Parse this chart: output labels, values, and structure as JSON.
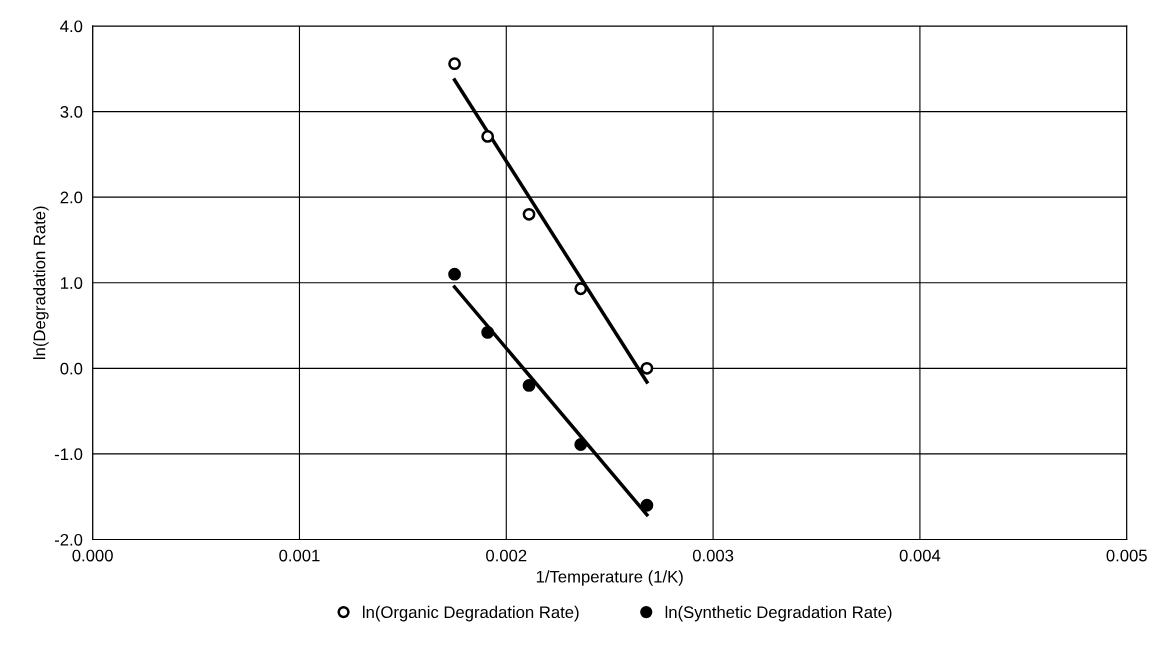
{
  "chart_data": {
    "type": "scatter",
    "xlabel": "1/Temperature (1/K)",
    "ylabel": "ln(Degradation Rate)",
    "series": [
      {
        "name": "ln(Organic Degradation Rate)",
        "color": "#ffffff",
        "marker": "circle",
        "x": [
          0.00175,
          0.00191,
          0.00211,
          0.00236,
          0.00268
        ],
        "values": [
          3.56,
          2.71,
          1.8,
          0.93,
          0.0
        ]
      },
      {
        "name": "ln(Synthetic Degradation Rate)",
        "color": "#000000",
        "marker": "circle",
        "x": [
          0.00175,
          0.00191,
          0.00211,
          0.00236,
          0.00268
        ],
        "values": [
          1.1,
          0.42,
          -0.2,
          -0.89,
          -1.6
        ]
      },
      {
        "type": "line",
        "color": "#000000",
        "marker": "none",
        "x": [
          0.00175,
          0.00268
        ],
        "values": [
          3.37,
          -0.16
        ]
      },
      {
        "type": "line",
        "color": "#000000",
        "marker": "none",
        "x": [
          0.00175,
          0.00268
        ],
        "values": [
          0.95,
          -1.71
        ]
      }
    ],
    "xlim": [
      0,
      0.005
    ],
    "xticks": [
      {
        "value": 0,
        "label": "0.000"
      },
      {
        "value": 0.001,
        "label": "0.001"
      },
      {
        "value": 0.002,
        "label": "0.002"
      },
      {
        "value": 0.003,
        "label": "0.003"
      },
      {
        "value": 0.004,
        "label": "0.004"
      },
      {
        "value": 0.005,
        "label": "0.005"
      }
    ],
    "ylim": [
      -2,
      4
    ],
    "yticks": [
      {
        "value": -2,
        "label": "-2.0"
      },
      {
        "value": -1,
        "label": "-1.0"
      },
      {
        "value": 0,
        "label": "0.0"
      },
      {
        "value": 1,
        "label": "1.0"
      },
      {
        "value": 2,
        "label": "2.0"
      },
      {
        "value": 3,
        "label": "3.0"
      },
      {
        "value": 4,
        "label": "4.0"
      }
    ],
    "grid": true,
    "legend": "bottom",
    "line_style": "solid"
  }
}
